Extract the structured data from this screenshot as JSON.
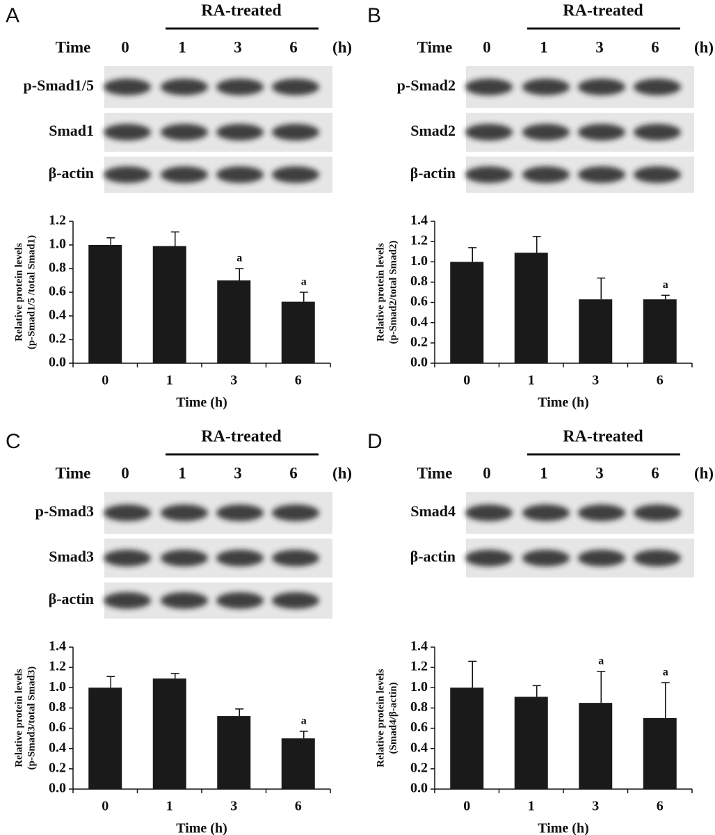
{
  "panels": [
    {
      "letter": "A",
      "treatment": "RA-treated",
      "time_label": "Time",
      "times": [
        "0",
        "1",
        "3",
        "6"
      ],
      "unit": "(h)",
      "blots": [
        "p-Smad1/5",
        "Smad1",
        "β-actin"
      ]
    },
    {
      "letter": "B",
      "treatment": "RA-treated",
      "time_label": "Time",
      "times": [
        "0",
        "1",
        "3",
        "6"
      ],
      "unit": "(h)",
      "blots": [
        "p-Smad2",
        "Smad2",
        "β-actin"
      ]
    },
    {
      "letter": "C",
      "treatment": "RA-treated",
      "time_label": "Time",
      "times": [
        "0",
        "1",
        "3",
        "6"
      ],
      "unit": "(h)",
      "blots": [
        "p-Smad3",
        "Smad3",
        "β-actin"
      ]
    },
    {
      "letter": "D",
      "treatment": "RA-treated",
      "time_label": "Time",
      "times": [
        "0",
        "1",
        "3",
        "6"
      ],
      "unit": "(h)",
      "blots": [
        "Smad4",
        "β-actin"
      ]
    }
  ],
  "chart_data": [
    {
      "type": "bar",
      "y_label": [
        "Relative protein levels",
        "(p-Smad1/5 /total Smad1)"
      ],
      "x_label": "Time (h)",
      "categories": [
        "0",
        "1",
        "3",
        "6"
      ],
      "values": [
        1.0,
        0.99,
        0.7,
        0.52
      ],
      "errors": [
        0.06,
        0.12,
        0.1,
        0.08
      ],
      "annotations": [
        null,
        null,
        "a",
        "a"
      ],
      "color": "#1a1a1a",
      "ylim": [
        0,
        1.2
      ],
      "yticks": [
        {
          "value": 0,
          "label": "0.0"
        },
        0.2,
        0.4,
        0.6,
        0.8,
        {
          "value": 1,
          "label": "1.0"
        },
        1.2
      ]
    },
    {
      "type": "bar",
      "y_label": [
        "Relative protein levels",
        "(p-Smad2/total Smad2)"
      ],
      "x_label": "Time (h)",
      "categories": [
        "0",
        "1",
        "3",
        "6"
      ],
      "values": [
        1.0,
        1.09,
        0.63,
        0.63
      ],
      "errors": [
        0.14,
        0.16,
        0.21,
        0.04
      ],
      "annotations": [
        null,
        null,
        null,
        "a"
      ],
      "color": "#1a1a1a",
      "ylim": [
        0,
        1.4
      ],
      "yticks": [
        {
          "value": 0,
          "label": "0.0"
        },
        0.2,
        0.4,
        0.6,
        0.8,
        {
          "value": 1,
          "label": "1.0"
        },
        1.2,
        1.4
      ]
    },
    {
      "type": "bar",
      "y_label": [
        "Relative protein levels",
        "(p-Smad3/total Smad3)"
      ],
      "x_label": "Time (h)",
      "categories": [
        "0",
        "1",
        "3",
        "6"
      ],
      "values": [
        1.0,
        1.09,
        0.72,
        0.5
      ],
      "errors": [
        0.11,
        0.05,
        0.07,
        0.07
      ],
      "annotations": [
        null,
        null,
        null,
        "a"
      ],
      "color": "#1a1a1a",
      "ylim": [
        0,
        1.4
      ],
      "yticks": [
        {
          "value": 0,
          "label": "0.0"
        },
        0.2,
        0.4,
        0.6,
        0.8,
        {
          "value": 1,
          "label": "1.0"
        },
        1.2,
        1.4
      ]
    },
    {
      "type": "bar",
      "y_label": [
        "Relative protein levels",
        "(Smad4/β-actin)"
      ],
      "x_label": "Time (h)",
      "categories": [
        "0",
        "1",
        "3",
        "6"
      ],
      "values": [
        1.0,
        0.91,
        0.85,
        0.7
      ],
      "errors": [
        0.26,
        0.11,
        0.31,
        0.35
      ],
      "annotations": [
        null,
        null,
        "a",
        "a"
      ],
      "color": "#1a1a1a",
      "ylim": [
        0,
        1.4
      ],
      "yticks": [
        {
          "value": 0,
          "label": "0.0"
        },
        0.2,
        0.4,
        0.6,
        0.8,
        {
          "value": 1,
          "label": "1.0"
        },
        1.2,
        1.4
      ]
    }
  ]
}
